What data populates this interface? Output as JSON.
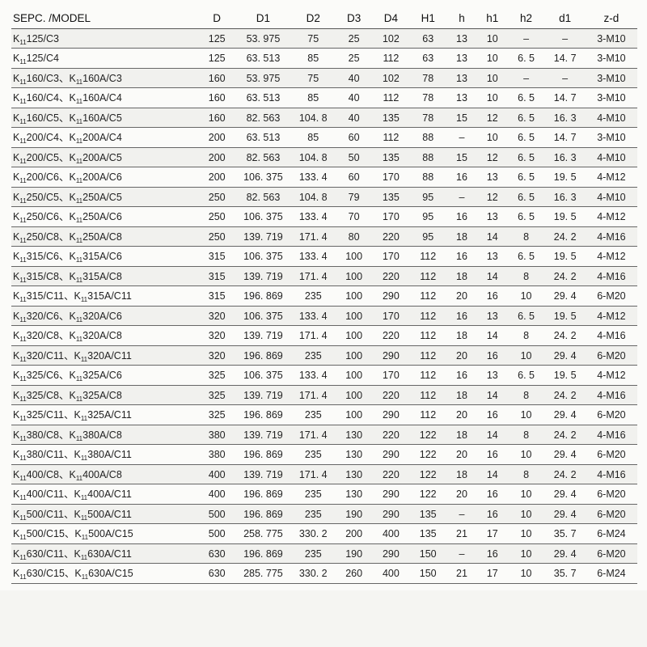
{
  "table": {
    "columns": [
      {
        "key": "model",
        "label": "SEPC. /MODEL",
        "cls": "model-col"
      },
      {
        "key": "D",
        "label": "D",
        "cls": "w-D"
      },
      {
        "key": "D1",
        "label": "D1",
        "cls": "w-D1"
      },
      {
        "key": "D2",
        "label": "D2",
        "cls": "w-D2"
      },
      {
        "key": "D3",
        "label": "D3",
        "cls": "w-D3"
      },
      {
        "key": "D4",
        "label": "D4",
        "cls": "w-D4"
      },
      {
        "key": "H1",
        "label": "H1",
        "cls": "w-H1"
      },
      {
        "key": "h",
        "label": "h",
        "cls": "w-h"
      },
      {
        "key": "h1",
        "label": "h1",
        "cls": "w-h1"
      },
      {
        "key": "h2",
        "label": "h2",
        "cls": "w-h2"
      },
      {
        "key": "d1",
        "label": "d1",
        "cls": "w-d1"
      },
      {
        "key": "zd",
        "label": "z-d",
        "cls": "w-zd"
      }
    ],
    "rows": [
      {
        "model": "K<sub>11</sub>125/C3",
        "D": "125",
        "D1": "53. 975",
        "D2": "75",
        "D3": "25",
        "D4": "102",
        "H1": "63",
        "h": "13",
        "h1": "10",
        "h2": "–",
        "d1": "–",
        "zd": "3-M10"
      },
      {
        "model": "K<sub>11</sub>125/C4",
        "D": "125",
        "D1": "63. 513",
        "D2": "85",
        "D3": "25",
        "D4": "112",
        "H1": "63",
        "h": "13",
        "h1": "10",
        "h2": "6. 5",
        "d1": "14. 7",
        "zd": "3-M10"
      },
      {
        "model": "K<sub>11</sub>160/C3、K<sub>11</sub>160A/C3",
        "D": "160",
        "D1": "53. 975",
        "D2": "75",
        "D3": "40",
        "D4": "102",
        "H1": "78",
        "h": "13",
        "h1": "10",
        "h2": "–",
        "d1": "–",
        "zd": "3-M10"
      },
      {
        "model": "K<sub>11</sub>160/C4、K<sub>11</sub>160A/C4",
        "D": "160",
        "D1": "63. 513",
        "D2": "85",
        "D3": "40",
        "D4": "112",
        "H1": "78",
        "h": "13",
        "h1": "10",
        "h2": "6. 5",
        "d1": "14. 7",
        "zd": "3-M10"
      },
      {
        "model": "K<sub>11</sub>160/C5、K<sub>11</sub>160A/C5",
        "D": "160",
        "D1": "82. 563",
        "D2": "104. 8",
        "D3": "40",
        "D4": "135",
        "H1": "78",
        "h": "15",
        "h1": "12",
        "h2": "6. 5",
        "d1": "16. 3",
        "zd": "4-M10"
      },
      {
        "model": "K<sub>11</sub>200/C4、K<sub>11</sub>200A/C4",
        "D": "200",
        "D1": "63. 513",
        "D2": "85",
        "D3": "60",
        "D4": "112",
        "H1": "88",
        "h": "–",
        "h1": "10",
        "h2": "6. 5",
        "d1": "14. 7",
        "zd": "3-M10"
      },
      {
        "model": "K<sub>11</sub>200/C5、K<sub>11</sub>200A/C5",
        "D": "200",
        "D1": "82. 563",
        "D2": "104. 8",
        "D3": "50",
        "D4": "135",
        "H1": "88",
        "h": "15",
        "h1": "12",
        "h2": "6. 5",
        "d1": "16. 3",
        "zd": "4-M10"
      },
      {
        "model": "K<sub>11</sub>200/C6、K<sub>11</sub>200A/C6",
        "D": "200",
        "D1": "106. 375",
        "D2": "133. 4",
        "D3": "60",
        "D4": "170",
        "H1": "88",
        "h": "16",
        "h1": "13",
        "h2": "6. 5",
        "d1": "19. 5",
        "zd": "4-M12"
      },
      {
        "model": "K<sub>11</sub>250/C5、K<sub>11</sub>250A/C5",
        "D": "250",
        "D1": "82. 563",
        "D2": "104. 8",
        "D3": "79",
        "D4": "135",
        "H1": "95",
        "h": "–",
        "h1": "12",
        "h2": "6. 5",
        "d1": "16. 3",
        "zd": "4-M10"
      },
      {
        "model": "K<sub>11</sub>250/C6、K<sub>11</sub>250A/C6",
        "D": "250",
        "D1": "106. 375",
        "D2": "133. 4",
        "D3": "70",
        "D4": "170",
        "H1": "95",
        "h": "16",
        "h1": "13",
        "h2": "6. 5",
        "d1": "19. 5",
        "zd": "4-M12"
      },
      {
        "model": "K<sub>11</sub>250/C8、K<sub>11</sub>250A/C8",
        "D": "250",
        "D1": "139. 719",
        "D2": "171. 4",
        "D3": "80",
        "D4": "220",
        "H1": "95",
        "h": "18",
        "h1": "14",
        "h2": "8",
        "d1": "24. 2",
        "zd": "4-M16"
      },
      {
        "model": "K<sub>11</sub>315/C6、K<sub>11</sub>315A/C6",
        "D": "315",
        "D1": "106. 375",
        "D2": "133. 4",
        "D3": "100",
        "D4": "170",
        "H1": "112",
        "h": "16",
        "h1": "13",
        "h2": "6. 5",
        "d1": "19. 5",
        "zd": "4-M12"
      },
      {
        "model": "K<sub>11</sub>315/C8、K<sub>11</sub>315A/C8",
        "D": "315",
        "D1": "139. 719",
        "D2": "171. 4",
        "D3": "100",
        "D4": "220",
        "H1": "112",
        "h": "18",
        "h1": "14",
        "h2": "8",
        "d1": "24. 2",
        "zd": "4-M16"
      },
      {
        "model": "K<sub>11</sub>315/C11、K<sub>11</sub>315A/C11",
        "D": "315",
        "D1": "196. 869",
        "D2": "235",
        "D3": "100",
        "D4": "290",
        "H1": "112",
        "h": "20",
        "h1": "16",
        "h2": "10",
        "d1": "29. 4",
        "zd": "6-M20"
      },
      {
        "model": "K<sub>11</sub>320/C6、K<sub>11</sub>320A/C6",
        "D": "320",
        "D1": "106. 375",
        "D2": "133. 4",
        "D3": "100",
        "D4": "170",
        "H1": "112",
        "h": "16",
        "h1": "13",
        "h2": "6. 5",
        "d1": "19. 5",
        "zd": "4-M12"
      },
      {
        "model": "K<sub>11</sub>320/C8、K<sub>11</sub>320A/C8",
        "D": "320",
        "D1": "139. 719",
        "D2": "171. 4",
        "D3": "100",
        "D4": "220",
        "H1": "112",
        "h": "18",
        "h1": "14",
        "h2": "8",
        "d1": "24. 2",
        "zd": "4-M16"
      },
      {
        "model": "K<sub>11</sub>320/C11、K<sub>11</sub>320A/C11",
        "D": "320",
        "D1": "196. 869",
        "D2": "235",
        "D3": "100",
        "D4": "290",
        "H1": "112",
        "h": "20",
        "h1": "16",
        "h2": "10",
        "d1": "29. 4",
        "zd": "6-M20"
      },
      {
        "model": "K<sub>11</sub>325/C6、K<sub>11</sub>325A/C6",
        "D": "325",
        "D1": "106. 375",
        "D2": "133. 4",
        "D3": "100",
        "D4": "170",
        "H1": "112",
        "h": "16",
        "h1": "13",
        "h2": "6. 5",
        "d1": "19. 5",
        "zd": "4-M12"
      },
      {
        "model": "K<sub>11</sub>325/C8、K<sub>11</sub>325A/C8",
        "D": "325",
        "D1": "139. 719",
        "D2": "171. 4",
        "D3": "100",
        "D4": "220",
        "H1": "112",
        "h": "18",
        "h1": "14",
        "h2": "8",
        "d1": "24. 2",
        "zd": "4-M16"
      },
      {
        "model": "K<sub>11</sub>325/C11、K<sub>11</sub>325A/C11",
        "D": "325",
        "D1": "196. 869",
        "D2": "235",
        "D3": "100",
        "D4": "290",
        "H1": "112",
        "h": "20",
        "h1": "16",
        "h2": "10",
        "d1": "29. 4",
        "zd": "6-M20"
      },
      {
        "model": "K<sub>11</sub>380/C8、K<sub>11</sub>380A/C8",
        "D": "380",
        "D1": "139. 719",
        "D2": "171. 4",
        "D3": "130",
        "D4": "220",
        "H1": "122",
        "h": "18",
        "h1": "14",
        "h2": "8",
        "d1": "24. 2",
        "zd": "4-M16"
      },
      {
        "model": "K<sub>11</sub>380/C11、K<sub>11</sub>380A/C11",
        "D": "380",
        "D1": "196. 869",
        "D2": "235",
        "D3": "130",
        "D4": "290",
        "H1": "122",
        "h": "20",
        "h1": "16",
        "h2": "10",
        "d1": "29. 4",
        "zd": "6-M20"
      },
      {
        "model": "K<sub>11</sub>400/C8、K<sub>11</sub>400A/C8",
        "D": "400",
        "D1": "139. 719",
        "D2": "171. 4",
        "D3": "130",
        "D4": "220",
        "H1": "122",
        "h": "18",
        "h1": "14",
        "h2": "8",
        "d1": "24. 2",
        "zd": "4-M16"
      },
      {
        "model": "K<sub>11</sub>400/C11、K<sub>11</sub>400A/C11",
        "D": "400",
        "D1": "196. 869",
        "D2": "235",
        "D3": "130",
        "D4": "290",
        "H1": "122",
        "h": "20",
        "h1": "16",
        "h2": "10",
        "d1": "29. 4",
        "zd": "6-M20"
      },
      {
        "model": "K<sub>11</sub>500/C11、K<sub>11</sub>500A/C11",
        "D": "500",
        "D1": "196. 869",
        "D2": "235",
        "D3": "190",
        "D4": "290",
        "H1": "135",
        "h": "–",
        "h1": "16",
        "h2": "10",
        "d1": "29. 4",
        "zd": "6-M20"
      },
      {
        "model": "K<sub>11</sub>500/C15、K<sub>11</sub>500A/C15",
        "D": "500",
        "D1": "258. 775",
        "D2": "330. 2",
        "D3": "200",
        "D4": "400",
        "H1": "135",
        "h": "21",
        "h1": "17",
        "h2": "10",
        "d1": "35. 7",
        "zd": "6-M24"
      },
      {
        "model": "K<sub>11</sub>630/C11、K<sub>11</sub>630A/C11",
        "D": "630",
        "D1": "196. 869",
        "D2": "235",
        "D3": "190",
        "D4": "290",
        "H1": "150",
        "h": "–",
        "h1": "16",
        "h2": "10",
        "d1": "29. 4",
        "zd": "6-M20"
      },
      {
        "model": "K<sub>11</sub>630/C15、K<sub>11</sub>630A/C15",
        "D": "630",
        "D1": "285. 775",
        "D2": "330. 2",
        "D3": "260",
        "D4": "400",
        "H1": "150",
        "h": "21",
        "h1": "17",
        "h2": "10",
        "d1": "35. 7",
        "zd": "6-M24"
      }
    ]
  }
}
